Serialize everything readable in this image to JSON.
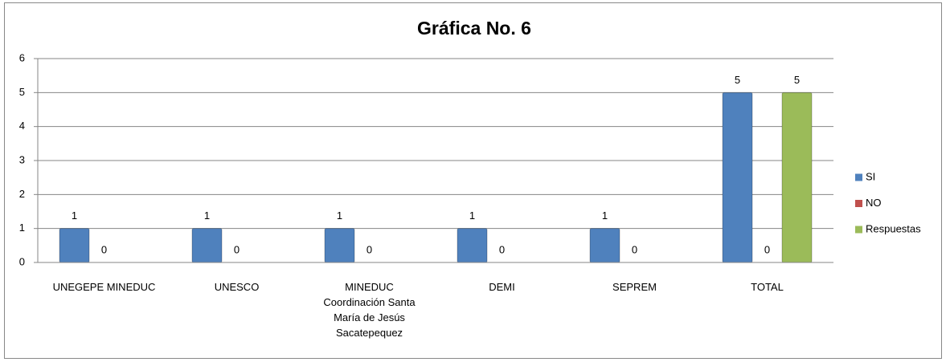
{
  "chart_data": {
    "type": "bar",
    "title": "Gráfica No. 6",
    "categories": [
      "UNEGEPE  MINEDUC",
      "UNESCO",
      "MINEDUC Coordinación Santa María de Jesús Sacatepequez",
      "DEMI",
      "SEPREM",
      "TOTAL"
    ],
    "series": [
      {
        "name": "SI",
        "color": "#4f81bd",
        "values": [
          1,
          1,
          1,
          1,
          1,
          5
        ]
      },
      {
        "name": "NO",
        "color": "#c0504d",
        "values": [
          0,
          0,
          0,
          0,
          0,
          0
        ]
      },
      {
        "name": "Respuestas",
        "color": "#9bbb59",
        "values": [
          null,
          null,
          null,
          null,
          null,
          5
        ]
      }
    ],
    "ylim": [
      0,
      6
    ],
    "yticks": [
      0,
      1,
      2,
      3,
      4,
      5,
      6
    ],
    "grid": true,
    "legend": "right"
  }
}
